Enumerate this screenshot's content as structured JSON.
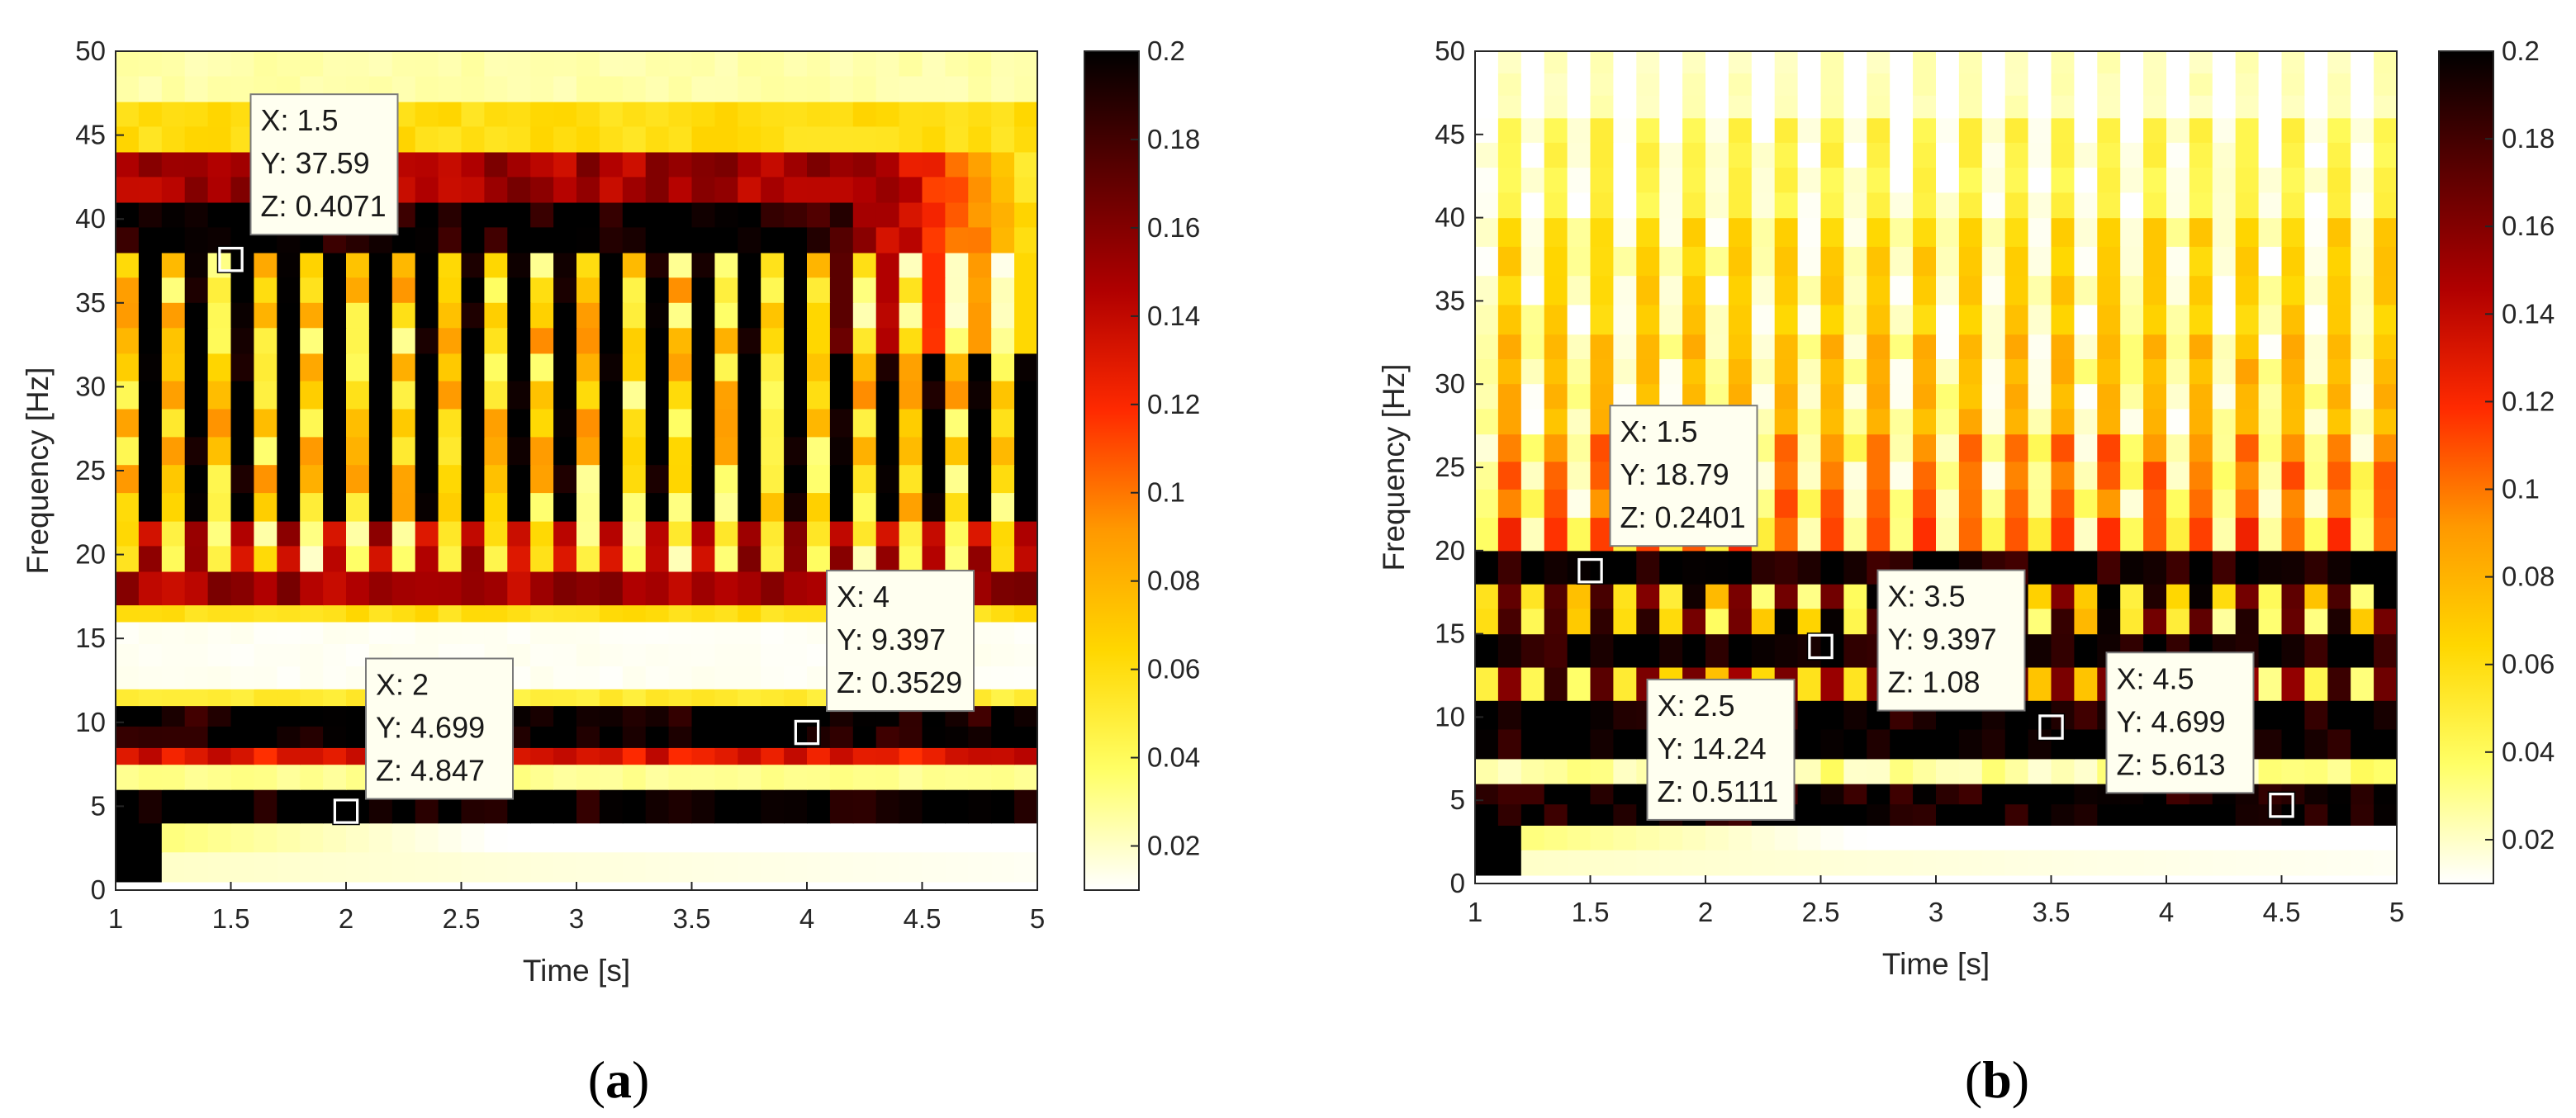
{
  "colors": {
    "cmap": [
      "#ffffff",
      "#ffff66",
      "#ffd700",
      "#ff9900",
      "#ff2a00",
      "#b00000",
      "#5a0000",
      "#000000"
    ],
    "tip_bg": "#fffff0",
    "tip_border": "#7a7a7a"
  },
  "chart_data": [
    {
      "type": "heatmap",
      "panel_label": "(a)",
      "panel_letter": "a",
      "xlabel": "Time [s]",
      "ylabel": "Frequency [Hz]",
      "xlim": [
        1,
        5
      ],
      "ylim": [
        0,
        50
      ],
      "xticks": [
        "1",
        "1.5",
        "2",
        "2.5",
        "3",
        "3.5",
        "4",
        "4.5",
        "5"
      ],
      "yticks": [
        "0",
        "5",
        "10",
        "15",
        "20",
        "25",
        "30",
        "35",
        "40",
        "45",
        "50"
      ],
      "colorbar": {
        "clim": [
          0.01,
          0.2
        ],
        "ticks": [
          "0.02",
          "0.04",
          "0.06",
          "0.08",
          "0.1",
          "0.12",
          "0.14",
          "0.16",
          "0.18",
          "0.2"
        ]
      },
      "bands": [
        {
          "f0": 0.5,
          "f1": 4,
          "level": 0.02,
          "sweep": true
        },
        {
          "f0": 4,
          "f1": 6,
          "level": 0.2
        },
        {
          "f0": 6,
          "f1": 7.5,
          "level": 0.03
        },
        {
          "f0": 7.5,
          "f1": 8.5,
          "level": 0.13
        },
        {
          "f0": 8.5,
          "f1": 11,
          "level": 0.2
        },
        {
          "f0": 11,
          "f1": 12,
          "level": 0.05
        },
        {
          "f0": 12,
          "f1": 16,
          "level": 0.012
        },
        {
          "f0": 16,
          "f1": 17,
          "level": 0.06
        },
        {
          "f0": 17,
          "f1": 19,
          "level": 0.15
        },
        {
          "f0": 19,
          "f1": 22,
          "level": 0.13,
          "stripes": 1
        },
        {
          "f0": 22,
          "f1": 32,
          "level": 0.19,
          "stripes": 1
        },
        {
          "f0": 32,
          "f1": 38,
          "level": 0.19,
          "stripes": 1,
          "fadeFrom": 3.9
        },
        {
          "f0": 38,
          "f1": 41,
          "level": 0.2,
          "fadeFrom": 3.9
        },
        {
          "f0": 41,
          "f1": 44,
          "level": 0.15,
          "fadeFrom": 4.3
        },
        {
          "f0": 44,
          "f1": 47,
          "level": 0.06
        },
        {
          "f0": 47,
          "f1": 50,
          "level": 0.025
        }
      ],
      "datatips": [
        {
          "x": 1.5,
          "y": 37.59,
          "z": 0.4071,
          "lines": [
            "X: 1.5",
            "Y: 37.59",
            "Z: 0.4071"
          ]
        },
        {
          "x": 2,
          "y": 4.699,
          "z": 4.847,
          "lines": [
            "X: 2",
            "Y: 4.699",
            "Z: 4.847"
          ]
        },
        {
          "x": 4,
          "y": 9.397,
          "z": 0.3529,
          "lines": [
            "X: 4",
            "Y: 9.397",
            "Z: 0.3529"
          ]
        }
      ]
    },
    {
      "type": "heatmap",
      "panel_label": "(b)",
      "panel_letter": "b",
      "xlabel": "Time [s]",
      "ylabel": "Frequency [Hz]",
      "xlim": [
        1,
        5
      ],
      "ylim": [
        0,
        50
      ],
      "xticks": [
        "1",
        "1.5",
        "2",
        "2.5",
        "3",
        "3.5",
        "4",
        "4.5",
        "5"
      ],
      "yticks": [
        "0",
        "5",
        "10",
        "15",
        "20",
        "25",
        "30",
        "35",
        "40",
        "45",
        "50"
      ],
      "colorbar": {
        "clim": [
          0.01,
          0.2
        ],
        "ticks": [
          "0.02",
          "0.04",
          "0.06",
          "0.08",
          "0.1",
          "0.12",
          "0.14",
          "0.16",
          "0.18",
          "0.2"
        ]
      },
      "bands": [
        {
          "f0": 0.5,
          "f1": 3.5,
          "level": 0.02,
          "sweep": true
        },
        {
          "f0": 3.5,
          "f1": 6,
          "level": 0.2
        },
        {
          "f0": 6,
          "f1": 7.5,
          "level": 0.03
        },
        {
          "f0": 7.5,
          "f1": 11,
          "level": 0.2
        },
        {
          "f0": 11,
          "f1": 13,
          "level": 0.15,
          "stripes": 1
        },
        {
          "f0": 13,
          "f1": 15,
          "level": 0.2
        },
        {
          "f0": 15,
          "f1": 18,
          "level": 0.16,
          "stripes": 1
        },
        {
          "f0": 18,
          "f1": 20,
          "level": 0.2
        },
        {
          "f0": 20,
          "f1": 22,
          "level": 0.1,
          "stripes": 1
        },
        {
          "f0": 22,
          "f1": 27,
          "level": 0.09,
          "stripes": 1
        },
        {
          "f0": 27,
          "f1": 33,
          "level": 0.07,
          "stripes": 1
        },
        {
          "f0": 33,
          "f1": 40,
          "level": 0.06,
          "stripes": 1
        },
        {
          "f0": 40,
          "f1": 46,
          "level": 0.04,
          "stripes": 1
        },
        {
          "f0": 46,
          "f1": 50,
          "level": 0.02,
          "stripes": 1
        }
      ],
      "datatips": [
        {
          "x": 1.5,
          "y": 18.79,
          "z": 0.2401,
          "lines": [
            "X: 1.5",
            "Y: 18.79",
            "Z: 0.2401"
          ]
        },
        {
          "x": 2.5,
          "y": 14.24,
          "z": 0.5111,
          "lines": [
            "X: 2.5",
            "Y: 14.24",
            "Z: 0.5111"
          ]
        },
        {
          "x": 3.5,
          "y": 9.397,
          "z": 1.08,
          "lines": [
            "X: 3.5",
            "Y: 9.397",
            "Z: 1.08"
          ]
        },
        {
          "x": 4.5,
          "y": 4.699,
          "z": 5.613,
          "lines": [
            "X: 4.5",
            "Y: 4.699",
            "Z: 5.613"
          ]
        }
      ]
    }
  ]
}
